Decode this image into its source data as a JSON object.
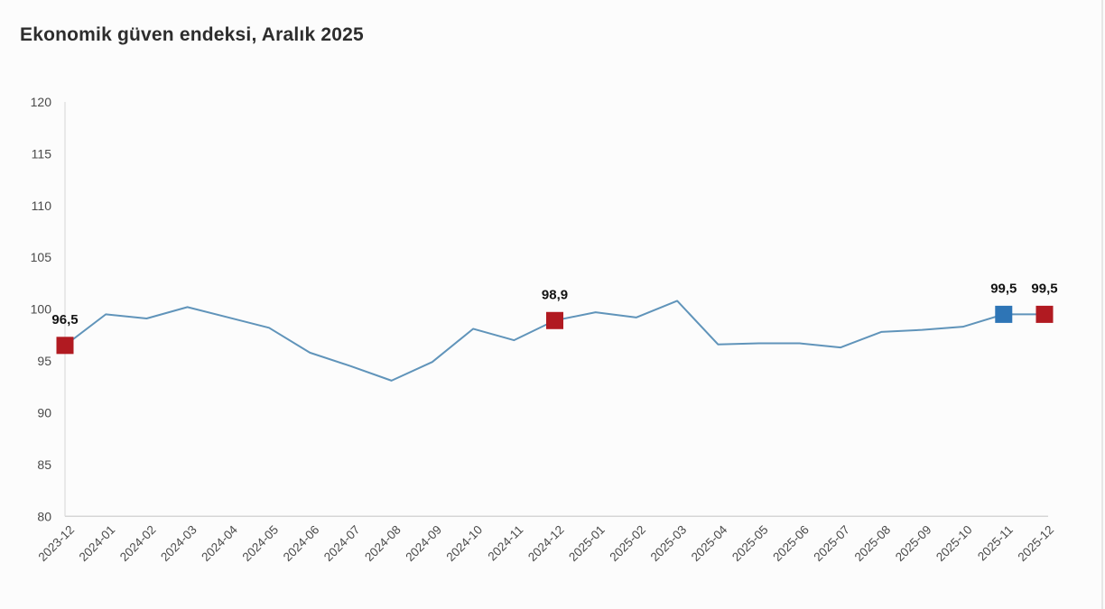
{
  "title": "Ekonomik güven endeksi, Aralık 2025",
  "colors": {
    "background": "#fcfcfc",
    "title_text": "#2d2d2d",
    "axis_line": "#d6d6d6",
    "axis_label": "#4a4a4a",
    "line": "#6094ba",
    "marker_red": "#b11a21",
    "marker_blue": "#2e75b6",
    "data_label": "#141414"
  },
  "chart_data": {
    "type": "line",
    "title": "Ekonomik güven endeksi, Aralık 2025",
    "xlabel": "",
    "ylabel": "",
    "ylim": [
      80,
      120
    ],
    "ytick_step": 5,
    "yticks": [
      80,
      85,
      90,
      95,
      100,
      105,
      110,
      115,
      120
    ],
    "grid": false,
    "legend": "none",
    "x": [
      "2023-12",
      "2024-01",
      "2024-02",
      "2024-03",
      "2024-04",
      "2024-05",
      "2024-06",
      "2024-07",
      "2024-08",
      "2024-09",
      "2024-10",
      "2024-11",
      "2024-12",
      "2025-01",
      "2025-02",
      "2025-03",
      "2025-04",
      "2025-05",
      "2025-06",
      "2025-07",
      "2025-08",
      "2025-09",
      "2025-10",
      "2025-11",
      "2025-12"
    ],
    "series": [
      {
        "name": "Ekonomik güven endeksi",
        "values": [
          96.5,
          99.5,
          99.1,
          100.2,
          99.2,
          98.2,
          95.8,
          94.5,
          93.1,
          94.9,
          98.1,
          97.0,
          98.9,
          99.7,
          99.2,
          100.8,
          96.6,
          96.7,
          96.7,
          96.3,
          97.8,
          98.0,
          98.3,
          99.5,
          99.5
        ]
      }
    ],
    "annotations": [
      {
        "x": "2023-12",
        "index": 0,
        "value": 96.5,
        "label": "96,5",
        "marker": "square",
        "marker_color": "#b11a21"
      },
      {
        "x": "2024-12",
        "index": 12,
        "value": 98.9,
        "label": "98,9",
        "marker": "square",
        "marker_color": "#b11a21"
      },
      {
        "x": "2025-11",
        "index": 23,
        "value": 99.5,
        "label": "99,5",
        "marker": "square",
        "marker_color": "#2e75b6"
      },
      {
        "x": "2025-12",
        "index": 24,
        "value": 99.5,
        "label": "99,5",
        "marker": "square",
        "marker_color": "#b11a21"
      }
    ]
  }
}
